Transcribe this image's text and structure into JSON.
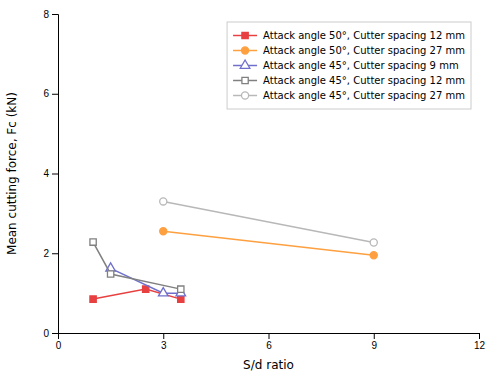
{
  "chart_data": {
    "type": "line",
    "xlabel": "S/d ratio",
    "ylabel": "Mean cutting force, Fc (kN)",
    "xlim": [
      0,
      12
    ],
    "ylim": [
      0,
      8
    ],
    "xticks": [
      0,
      3,
      6,
      9,
      12
    ],
    "yticks": [
      0,
      2,
      4,
      6,
      8
    ],
    "grid": false,
    "legend": "upper right",
    "series": [
      {
        "name": "Attack angle 50°, Cutter spacing 12 mm",
        "color": "#e84040",
        "marker": "square",
        "x": [
          1,
          2.5,
          3.5
        ],
        "values": [
          0.85,
          1.1,
          0.85
        ]
      },
      {
        "name": "Attack angle 50°, Cutter spacing 27 mm",
        "color": "#ffa040",
        "marker": "circle",
        "x": [
          3,
          9
        ],
        "values": [
          2.55,
          1.95
        ]
      },
      {
        "name": "Attack angle 45°, Cutter spacing 9 mm",
        "color": "#7070cc",
        "marker": "triangle-open",
        "x": [
          1.5,
          3.0,
          3.5
        ],
        "values": [
          1.62,
          1.0,
          1.0
        ]
      },
      {
        "name": "Attack angle 45°, Cutter spacing 12 mm",
        "color": "#808080",
        "marker": "square-open",
        "x": [
          1,
          1.5,
          3.5
        ],
        "values": [
          2.28,
          1.48,
          1.1
        ]
      },
      {
        "name": "Attack angle 45°, Cutter spacing 27 mm",
        "color": "#b8b8b8",
        "marker": "circle-open",
        "x": [
          3,
          9
        ],
        "values": [
          3.3,
          2.27
        ]
      }
    ]
  }
}
